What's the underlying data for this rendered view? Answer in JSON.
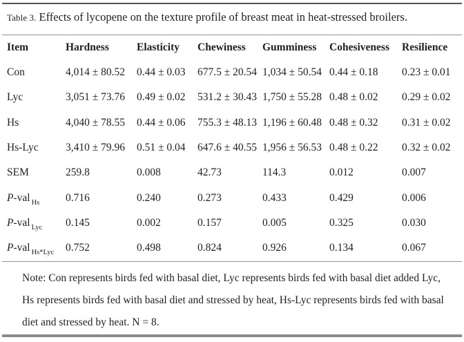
{
  "caption": {
    "label": "Table 3.",
    "text": "Effects of lycopene on the texture profile of breast meat in heat-stressed broilers."
  },
  "table": {
    "headers": [
      "Item",
      "Hardness",
      "Elasticity",
      "Chewiness",
      "Gumminess",
      "Cohesiveness",
      "Resilience"
    ],
    "rows": [
      {
        "item": "Con",
        "hardness": "4,014 ± 80.52",
        "elasticity": "0.44 ± 0.03",
        "chewiness": "677.5 ± 20.54",
        "gumminess": "1,034 ± 50.54",
        "cohesiveness": "0.44 ± 0.18",
        "resilience": "0.23 ± 0.01"
      },
      {
        "item": "Lyc",
        "hardness": "3,051 ± 73.76",
        "elasticity": "0.49 ± 0.02",
        "chewiness": "531.2 ± 30.43",
        "gumminess": "1,750 ± 55.28",
        "cohesiveness": "0.48 ± 0.02",
        "resilience": "0.29 ± 0.02"
      },
      {
        "item": "Hs",
        "hardness": "4,040 ± 78.55",
        "elasticity": "0.44 ± 0.06",
        "chewiness": "755.3 ± 48.13",
        "gumminess": "1,196 ± 60.48",
        "cohesiveness": "0.48 ± 0.32",
        "resilience": "0.31 ± 0.02"
      },
      {
        "item": "Hs-Lyc",
        "hardness": "3,410 ± 79.96",
        "elasticity": "0.51 ± 0.04",
        "chewiness": "647.6 ± 40.55",
        "gumminess": "1,956 ± 56.53",
        "cohesiveness": "0.48 ± 0.22",
        "resilience": "0.32 ± 0.02"
      },
      {
        "item": "SEM",
        "hardness": "259.8",
        "elasticity": "0.008",
        "chewiness": "42.73",
        "gumminess": "114.3",
        "cohesiveness": "0.012",
        "resilience": "0.007"
      },
      {
        "item_p": "P",
        "item_text": "-val",
        "item_sub": "Hs",
        "hardness": "0.716",
        "elasticity": "0.240",
        "chewiness": "0.273",
        "gumminess": "0.433",
        "cohesiveness": "0.429",
        "resilience": "0.006"
      },
      {
        "item_p": "P",
        "item_text": "-val",
        "item_sub": "Lyc",
        "hardness": "0.145",
        "elasticity": "0.002",
        "chewiness": "0.157",
        "gumminess": "0.005",
        "cohesiveness": "0.325",
        "resilience": "0.030"
      },
      {
        "item_p": "P",
        "item_text": "-val",
        "item_sub": "Hs*Lyc",
        "hardness": "0.752",
        "elasticity": "0.498",
        "chewiness": "0.824",
        "gumminess": "0.926",
        "cohesiveness": "0.134",
        "resilience": "0.067"
      }
    ]
  },
  "note": {
    "lines": [
      "Note: Con represents birds fed with basal diet, Lyc represents birds fed with basal diet added Lyc,",
      "Hs represents birds fed with basal diet and stressed by heat, Hs-Lyc represents birds fed with basal",
      "diet and stressed by heat. N = 8."
    ]
  },
  "colors": {
    "text": "#1f1f1f",
    "rule_dark": "#515151",
    "rule_light": "#919191",
    "rule_bottom": "#8a8a8a",
    "background": "#ffffff"
  }
}
